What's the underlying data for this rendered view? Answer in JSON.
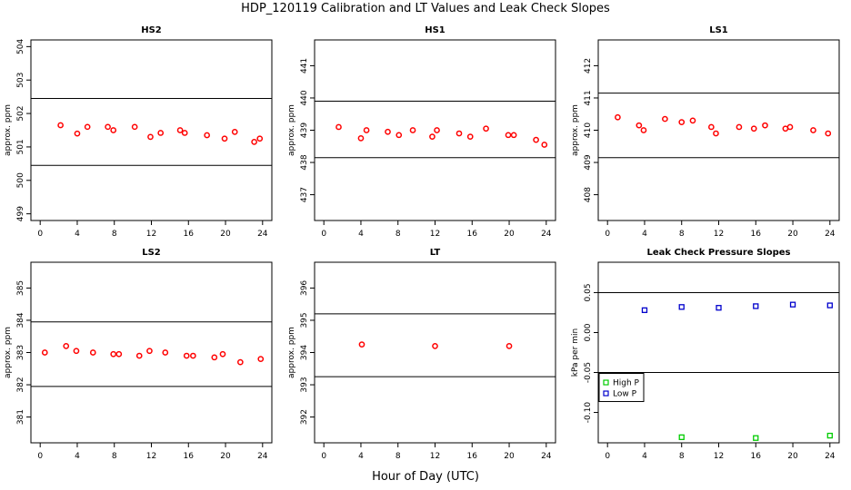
{
  "title": "HDP_120119  Calibration and LT Values and Leak Check Slopes",
  "xlabel": "Hour of Day (UTC)",
  "colors": {
    "red": "#ff0000",
    "green": "#00cc00",
    "blue": "#0000cc",
    "axis": "#000000"
  },
  "chart_data": [
    {
      "type": "scatter",
      "title": "HS2",
      "ylabel": "approx. ppm",
      "xlim": [
        -1,
        25
      ],
      "ylim": [
        498.8,
        504.2
      ],
      "xticks": [
        0,
        4,
        8,
        12,
        16,
        20,
        24
      ],
      "yticks": [
        499,
        500,
        501,
        502,
        503,
        504
      ],
      "hlines": [
        502.45,
        500.45
      ],
      "series": [
        {
          "name": "HS2",
          "color": "red",
          "x": [
            2.2,
            4.0,
            5.1,
            7.3,
            7.9,
            10.2,
            11.9,
            13.0,
            15.1,
            15.6,
            18.0,
            19.9,
            21.0,
            23.1,
            23.7
          ],
          "y": [
            501.65,
            501.4,
            501.6,
            501.6,
            501.5,
            501.6,
            501.3,
            501.42,
            501.5,
            501.42,
            501.35,
            501.25,
            501.45,
            501.15,
            501.25
          ]
        }
      ]
    },
    {
      "type": "scatter",
      "title": "HS1",
      "ylabel": "approx. ppm",
      "xlim": [
        -1,
        25
      ],
      "ylim": [
        436.2,
        441.8
      ],
      "xticks": [
        0,
        4,
        8,
        12,
        16,
        20,
        24
      ],
      "yticks": [
        437,
        438,
        439,
        440,
        441
      ],
      "hlines": [
        439.9,
        438.15
      ],
      "series": [
        {
          "name": "HS1",
          "color": "red",
          "x": [
            1.6,
            4.0,
            4.6,
            6.9,
            8.1,
            9.6,
            11.7,
            12.2,
            14.6,
            15.8,
            17.5,
            19.9,
            20.5,
            22.9,
            23.8
          ],
          "y": [
            439.1,
            438.75,
            439.0,
            438.95,
            438.85,
            439.0,
            438.8,
            439.0,
            438.9,
            438.8,
            439.05,
            438.85,
            438.85,
            438.7,
            438.55
          ]
        }
      ]
    },
    {
      "type": "scatter",
      "title": "LS1",
      "ylabel": "approx. ppm",
      "xlim": [
        -1,
        25
      ],
      "ylim": [
        407.2,
        412.8
      ],
      "xticks": [
        0,
        4,
        8,
        12,
        16,
        20,
        24
      ],
      "yticks": [
        408,
        409,
        410,
        411,
        412
      ],
      "hlines": [
        411.15,
        409.15
      ],
      "series": [
        {
          "name": "LS1",
          "color": "red",
          "x": [
            1.1,
            3.4,
            3.9,
            6.2,
            8.0,
            9.2,
            11.2,
            11.7,
            14.2,
            15.8,
            17.0,
            19.2,
            19.7,
            22.2,
            23.8
          ],
          "y": [
            410.4,
            410.15,
            410.0,
            410.35,
            410.25,
            410.3,
            410.1,
            409.9,
            410.1,
            410.05,
            410.15,
            410.05,
            410.1,
            410.0,
            409.9
          ]
        }
      ]
    },
    {
      "type": "scatter",
      "title": "LS2",
      "ylabel": "approx. ppm",
      "xlim": [
        -1,
        25
      ],
      "ylim": [
        380.2,
        385.8
      ],
      "xticks": [
        0,
        4,
        8,
        12,
        16,
        20,
        24
      ],
      "yticks": [
        381,
        382,
        383,
        384,
        385
      ],
      "hlines": [
        383.95,
        381.95
      ],
      "series": [
        {
          "name": "LS2",
          "color": "red",
          "x": [
            0.5,
            2.8,
            3.9,
            5.7,
            7.9,
            8.5,
            10.7,
            11.8,
            13.5,
            15.8,
            16.5,
            18.8,
            19.7,
            21.6,
            23.8
          ],
          "y": [
            383.0,
            383.2,
            383.05,
            383.0,
            382.95,
            382.95,
            382.9,
            383.05,
            383.0,
            382.9,
            382.9,
            382.85,
            382.95,
            382.7,
            382.8
          ]
        }
      ]
    },
    {
      "type": "scatter",
      "title": "LT",
      "ylabel": "approx. ppm",
      "xlim": [
        -1,
        25
      ],
      "ylim": [
        391.2,
        396.8
      ],
      "xticks": [
        0,
        4,
        8,
        12,
        16,
        20,
        24
      ],
      "yticks": [
        392,
        393,
        394,
        395,
        396
      ],
      "hlines": [
        395.2,
        393.25
      ],
      "series": [
        {
          "name": "LT",
          "color": "red",
          "x": [
            4.1,
            12.0,
            20.0
          ],
          "y": [
            394.25,
            394.2,
            394.2
          ]
        }
      ]
    },
    {
      "type": "scatter",
      "title": "Leak Check Pressure Slopes",
      "ylabel": "kPa per min",
      "xlim": [
        -1,
        25
      ],
      "ylim": [
        -0.138,
        0.088
      ],
      "xticks": [
        0,
        4,
        8,
        12,
        16,
        20,
        24
      ],
      "yticks": [
        -0.1,
        -0.05,
        0.0,
        0.05
      ],
      "ytick_labels": [
        "-0.10",
        "-0.05",
        "0.00",
        "0.05"
      ],
      "hlines": [
        0.05,
        -0.05
      ],
      "legend": {
        "position": "left",
        "entries": [
          {
            "name": "High P",
            "color": "green"
          },
          {
            "name": "Low P",
            "color": "blue"
          }
        ]
      },
      "series": [
        {
          "name": "High P",
          "color": "green",
          "marker": "square",
          "x": [
            8,
            16,
            24
          ],
          "y": [
            -0.131,
            -0.132,
            -0.129
          ]
        },
        {
          "name": "Low P",
          "color": "blue",
          "marker": "square",
          "x": [
            4,
            8,
            12,
            16,
            20,
            24
          ],
          "y": [
            0.028,
            0.032,
            0.031,
            0.033,
            0.035,
            0.034
          ]
        }
      ]
    }
  ]
}
